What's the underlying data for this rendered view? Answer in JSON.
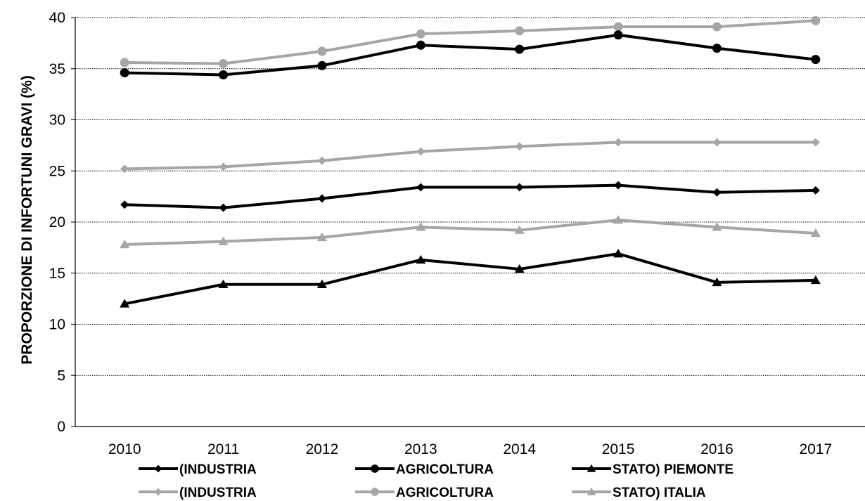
{
  "chart_data": {
    "type": "line",
    "title": "",
    "xlabel": "",
    "ylabel": "PROPORZIONE DI INFORTUNI GRAVI (%)",
    "ylim": [
      0,
      40
    ],
    "yticks": [
      0,
      5,
      10,
      15,
      20,
      25,
      30,
      35,
      40
    ],
    "grid": "horizontal dotted",
    "legend_position": "bottom",
    "categories": [
      "2010",
      "2011",
      "2012",
      "2013",
      "2014",
      "2015",
      "2016",
      "2017"
    ],
    "series": [
      {
        "name": "(INDUSTRIA",
        "color": "#000000",
        "marker": "diamond",
        "values": [
          21.7,
          21.4,
          22.3,
          23.4,
          23.4,
          23.6,
          22.9,
          23.1
        ]
      },
      {
        "name": "AGRICOLTURA",
        "color": "#000000",
        "marker": "circle",
        "values": [
          34.6,
          34.4,
          35.3,
          37.3,
          36.9,
          38.3,
          37.0,
          35.9
        ]
      },
      {
        "name": "STATO) PIEMONTE",
        "color": "#000000",
        "marker": "triangle",
        "values": [
          12.0,
          13.9,
          13.9,
          16.3,
          15.4,
          16.9,
          14.1,
          14.3
        ]
      },
      {
        "name": "(INDUSTRIA",
        "color": "#a6a6a6",
        "marker": "diamond",
        "values": [
          25.2,
          25.4,
          26.0,
          26.9,
          27.4,
          27.8,
          27.8,
          27.8
        ]
      },
      {
        "name": "AGRICOLTURA",
        "color": "#a6a6a6",
        "marker": "circle",
        "values": [
          35.6,
          35.5,
          36.7,
          38.4,
          38.7,
          39.1,
          39.1,
          39.7
        ]
      },
      {
        "name": "STATO) ITALIA",
        "color": "#a6a6a6",
        "marker": "triangle",
        "values": [
          17.8,
          18.1,
          18.5,
          19.5,
          19.2,
          20.2,
          19.5,
          18.9
        ]
      }
    ]
  }
}
